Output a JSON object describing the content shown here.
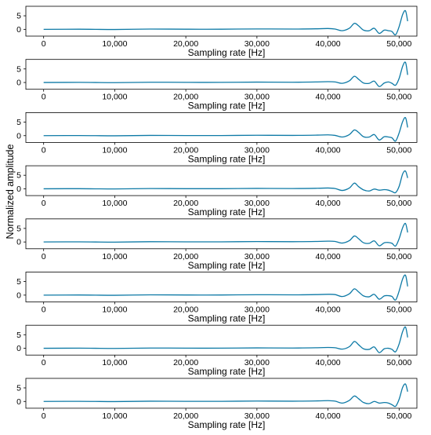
{
  "chart_data": {
    "type": "line",
    "ylabel": "Normalized amplitude",
    "line_color": "#0e7aa6",
    "panels": [
      {
        "xlabel": "Sampling  rate [Hz]",
        "x_ticks": [
          "0",
          "10,000",
          "20,000",
          "30,000",
          "40,000",
          "50,000"
        ],
        "y_ticks": [
          "5",
          "0"
        ],
        "x_range": [
          -2500,
          52500
        ],
        "y_range": [
          -2.5,
          8.5
        ],
        "series": [
          {
            "x": [
              0,
              5000,
              10000,
              15000,
              20000,
              25000,
              30000,
              35000,
              38500,
              40000,
              41000,
              42000,
              43000,
              43700,
              44300,
              45000,
              45800,
              46500,
              47200,
              47900,
              48500,
              49000,
              49500,
              50000,
              50500,
              50900,
              51200
            ],
            "y": [
              0,
              0.05,
              -0.05,
              0.1,
              0.05,
              0.05,
              0.15,
              0.1,
              0.2,
              0.3,
              0.1,
              -0.5,
              0.4,
              2.2,
              1.3,
              -0.3,
              -0.5,
              0.4,
              -1.5,
              -0.3,
              -0.5,
              -0.8,
              -2.0,
              1.0,
              5.5,
              6.8,
              3.0
            ]
          }
        ]
      },
      {
        "xlabel": "Sampling  rate [Hz]",
        "x_ticks": [
          "0",
          "10,000",
          "20,000",
          "30,000",
          "40,000",
          "50,000"
        ],
        "y_ticks": [
          "5",
          "0"
        ],
        "x_range": [
          -2500,
          52500
        ],
        "y_range": [
          -2.5,
          8.5
        ],
        "series": [
          {
            "x": [
              0,
              5000,
              10000,
              15000,
              20000,
              25000,
              30000,
              35000,
              38500,
              40000,
              41000,
              42000,
              43000,
              43700,
              44300,
              45000,
              45800,
              46500,
              47200,
              47900,
              48500,
              49000,
              49500,
              50000,
              50500,
              50900,
              51200
            ],
            "y": [
              0,
              0.05,
              -0.05,
              0.1,
              0.05,
              0.05,
              0.15,
              0.1,
              0.2,
              0.3,
              0.2,
              -0.3,
              0.6,
              2.3,
              1.2,
              -0.2,
              -0.3,
              0.5,
              -1.5,
              -0.2,
              0.2,
              -0.3,
              -1.0,
              1.5,
              6.0,
              7.4,
              2.8
            ]
          }
        ]
      },
      {
        "xlabel": "Sampling  rate [Hz]",
        "x_ticks": [
          "0",
          "10,000",
          "20,000",
          "30,000",
          "40,000",
          "50,000"
        ],
        "y_ticks": [
          "5",
          "0"
        ],
        "x_range": [
          -2500,
          52500
        ],
        "y_range": [
          -2.5,
          8.5
        ],
        "series": [
          {
            "x": [
              0,
              5000,
              10000,
              15000,
              20000,
              25000,
              30000,
              35000,
              38500,
              40000,
              41000,
              42000,
              43000,
              43700,
              44300,
              45000,
              45800,
              46500,
              47200,
              47900,
              48500,
              49000,
              49500,
              50000,
              50500,
              50900,
              51200
            ],
            "y": [
              0,
              0.05,
              -0.05,
              0.1,
              0.05,
              0.05,
              0.15,
              0.1,
              0.2,
              0.3,
              0.1,
              -0.5,
              0.4,
              2.1,
              1.2,
              -0.4,
              -0.5,
              0.4,
              -1.6,
              -0.4,
              -0.5,
              -0.8,
              -2.0,
              1.0,
              5.2,
              6.6,
              3.0
            ]
          }
        ]
      },
      {
        "xlabel": "Sampling  rate [Hz]",
        "x_ticks": [
          "0",
          "10,000",
          "20,000",
          "30,000",
          "40,000",
          "50,000"
        ],
        "y_ticks": [
          "5",
          "0"
        ],
        "x_range": [
          -2500,
          52500
        ],
        "y_range": [
          -2.5,
          8.5
        ],
        "series": [
          {
            "x": [
              0,
              5000,
              10000,
              15000,
              20000,
              25000,
              30000,
              35000,
              38500,
              40000,
              41000,
              42000,
              43000,
              43700,
              44300,
              45000,
              45800,
              46500,
              47200,
              47900,
              48500,
              49000,
              49500,
              50000,
              50500,
              50900,
              51200
            ],
            "y": [
              0,
              0.05,
              -0.05,
              0.1,
              0.05,
              0.05,
              0.15,
              0.1,
              0.2,
              0.3,
              0.1,
              -0.6,
              0.3,
              2.1,
              0.8,
              -0.4,
              -0.8,
              -0.1,
              -0.5,
              -0.3,
              -0.5,
              -1.0,
              -1.4,
              0.9,
              5.5,
              6.5,
              4.0
            ]
          }
        ]
      },
      {
        "xlabel": "Sampling  rate [Hz]",
        "x_ticks": [
          "0",
          "10,000",
          "20,000",
          "30,000",
          "40,000",
          "50,000"
        ],
        "y_ticks": [
          "5",
          "0"
        ],
        "x_range": [
          -2500,
          52500
        ],
        "y_range": [
          -2.5,
          8.5
        ],
        "series": [
          {
            "x": [
              0,
              5000,
              10000,
              15000,
              20000,
              25000,
              30000,
              35000,
              38500,
              40000,
              41000,
              42000,
              43000,
              43700,
              44300,
              45000,
              45800,
              46500,
              47200,
              47900,
              48500,
              49000,
              49500,
              50000,
              50500,
              50900,
              51200
            ],
            "y": [
              0,
              0.05,
              -0.05,
              0.1,
              0.05,
              0.05,
              0.15,
              0.1,
              0.2,
              0.3,
              0.2,
              -0.4,
              0.5,
              2.2,
              1.2,
              -0.3,
              -0.5,
              0.4,
              -1.4,
              -0.3,
              -0.2,
              -0.5,
              -1.5,
              1.2,
              5.3,
              6.8,
              3.5
            ]
          }
        ]
      },
      {
        "xlabel": "Sampling  rate [Hz]",
        "x_ticks": [
          "0",
          "10,000",
          "20,000",
          "30,000",
          "40,000",
          "50,000"
        ],
        "y_ticks": [
          "5",
          "0"
        ],
        "x_range": [
          -2500,
          52500
        ],
        "y_range": [
          -2.5,
          8.5
        ],
        "series": [
          {
            "x": [
              0,
              5000,
              10000,
              15000,
              20000,
              25000,
              30000,
              35000,
              38500,
              40000,
              41000,
              42000,
              43000,
              43700,
              44300,
              45000,
              45800,
              46500,
              47200,
              47900,
              48500,
              49000,
              49500,
              50000,
              50500,
              50900,
              51200
            ],
            "y": [
              0,
              0.05,
              -0.05,
              0.1,
              0.05,
              0.05,
              0.15,
              0.1,
              0.2,
              0.3,
              0.2,
              -0.5,
              0.5,
              2.3,
              1.2,
              -0.3,
              -0.6,
              0.3,
              -1.5,
              -0.3,
              -0.2,
              -0.5,
              -1.8,
              1.5,
              6.0,
              7.3,
              3.2
            ]
          }
        ]
      },
      {
        "xlabel": "Sampling  rate [Hz]",
        "x_ticks": [
          "0",
          "10,000",
          "20,000",
          "30,000",
          "40,000",
          "50,000"
        ],
        "y_ticks": [
          "5",
          "0"
        ],
        "x_range": [
          -2500,
          52500
        ],
        "y_range": [
          -2.5,
          8.5
        ],
        "series": [
          {
            "x": [
              0,
              5000,
              10000,
              15000,
              20000,
              25000,
              30000,
              35000,
              38500,
              40000,
              41000,
              42000,
              43000,
              43700,
              44300,
              45000,
              45800,
              46500,
              47200,
              47900,
              48500,
              49000,
              49500,
              50000,
              50500,
              50900,
              51200
            ],
            "y": [
              0,
              0.05,
              -0.05,
              0.1,
              0.05,
              0.05,
              0.15,
              0.1,
              0.2,
              0.3,
              0.2,
              -0.3,
              0.6,
              2.5,
              1.3,
              -0.2,
              -0.4,
              0.5,
              -1.6,
              -0.2,
              0.0,
              -0.4,
              -1.3,
              1.6,
              6.2,
              7.8,
              4.0
            ]
          }
        ]
      },
      {
        "xlabel": "Sampling  rate [Hz]",
        "x_ticks": [
          "0",
          "10,000",
          "20,000",
          "30,000",
          "40,000",
          "50,000"
        ],
        "y_ticks": [
          "5",
          "0"
        ],
        "x_range": [
          -2500,
          52500
        ],
        "y_range": [
          -2.5,
          8.5
        ],
        "series": [
          {
            "x": [
              0,
              5000,
              10000,
              15000,
              20000,
              25000,
              30000,
              35000,
              38500,
              40000,
              41000,
              42000,
              43000,
              43700,
              44300,
              45000,
              45800,
              46500,
              47200,
              47900,
              48500,
              49000,
              49500,
              50000,
              50500,
              50900,
              51200
            ],
            "y": [
              0,
              0.05,
              -0.05,
              0.1,
              0.05,
              0.05,
              0.15,
              0.1,
              0.2,
              0.3,
              0.1,
              -0.6,
              0.4,
              2.0,
              1.0,
              -0.4,
              -0.8,
              0.0,
              -0.6,
              -0.4,
              -0.6,
              -1.2,
              -1.8,
              0.8,
              5.2,
              6.4,
              3.6
            ]
          }
        ]
      }
    ]
  }
}
